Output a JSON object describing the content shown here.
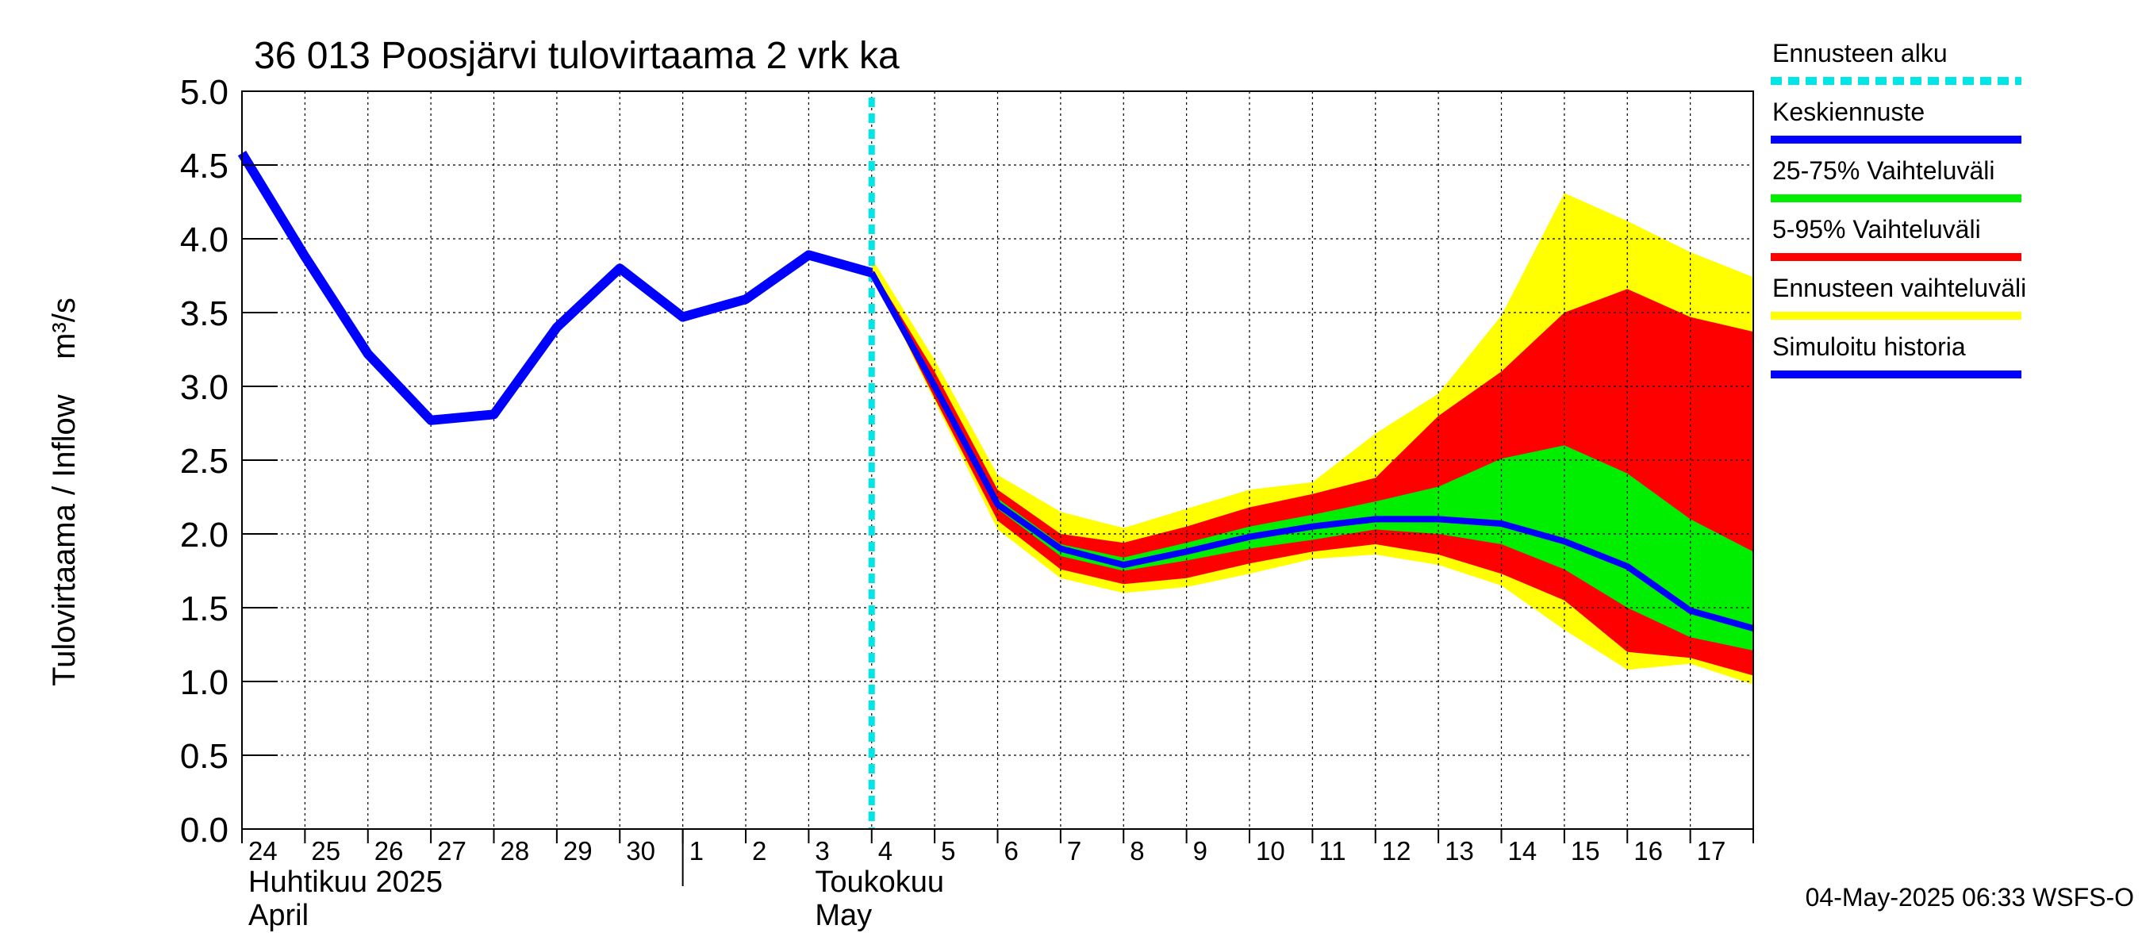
{
  "chart_data": {
    "type": "area",
    "title": "36 013 Poosjärvi tulovirtaama 2 vrk ka",
    "ylabel": "Tulovirtaama / Inflow    m³/s",
    "ylim": [
      0.0,
      5.0
    ],
    "y_ticks": [
      "0.0",
      "0.5",
      "1.0",
      "1.5",
      "2.0",
      "2.5",
      "3.0",
      "3.5",
      "4.0",
      "4.5",
      "5.0"
    ],
    "x_start": "2025-04-24",
    "x_end": "2025-05-18",
    "x_tick_labels": [
      "24",
      "25",
      "26",
      "27",
      "28",
      "29",
      "30",
      "1",
      "2",
      "3",
      "4",
      "5",
      "6",
      "7",
      "8",
      "9",
      "10",
      "11",
      "12",
      "13",
      "14",
      "15",
      "16",
      "17"
    ],
    "month_labels": [
      {
        "fi": "Huhtikuu  2025",
        "en": "April"
      },
      {
        "fi": "Toukokuu",
        "en": "May"
      }
    ],
    "forecast_start": "2025-05-04",
    "grid": true,
    "legend_position": "right",
    "legend": [
      {
        "label": "Ennusteen alku",
        "color": "#00e5e5",
        "style": "dashed"
      },
      {
        "label": "Keskiennuste",
        "color": "#0000ff",
        "style": "solid"
      },
      {
        "label": "25-75% Vaihteluväli",
        "color": "#00ee00",
        "style": "solid"
      },
      {
        "label": "5-95% Vaihteluväli",
        "color": "#ff0000",
        "style": "solid"
      },
      {
        "label": "Ennusteen vaihteluväli",
        "color": "#ffff00",
        "style": "solid"
      },
      {
        "label": "Simuloitu historia",
        "color": "#0000ff",
        "style": "solid"
      }
    ],
    "history": {
      "name": "Simuloitu historia",
      "color": "#0000ff",
      "x": [
        "2025-04-24",
        "2025-04-25",
        "2025-04-26",
        "2025-04-27",
        "2025-04-28",
        "2025-04-29",
        "2025-04-30",
        "2025-05-01",
        "2025-05-02",
        "2025-05-03",
        "2025-05-04"
      ],
      "y": [
        4.58,
        3.88,
        3.22,
        2.77,
        2.81,
        3.4,
        3.8,
        3.47,
        3.59,
        3.89,
        3.77
      ]
    },
    "forecast": {
      "x": [
        "2025-05-04",
        "2025-05-05",
        "2025-05-06",
        "2025-05-07",
        "2025-05-08",
        "2025-05-09",
        "2025-05-10",
        "2025-05-11",
        "2025-05-12",
        "2025-05-13",
        "2025-05-14",
        "2025-05-15",
        "2025-05-16",
        "2025-05-17",
        "2025-05-18"
      ],
      "median": [
        3.77,
        3.0,
        2.2,
        1.9,
        1.79,
        1.88,
        1.98,
        2.05,
        2.1,
        2.1,
        2.07,
        1.95,
        1.78,
        1.48,
        1.36
      ],
      "p25": [
        3.77,
        2.97,
        2.17,
        1.85,
        1.75,
        1.82,
        1.9,
        1.96,
        2.03,
        2.0,
        1.93,
        1.76,
        1.5,
        1.3,
        1.21
      ],
      "p75": [
        3.77,
        3.03,
        2.24,
        1.93,
        1.84,
        1.94,
        2.05,
        2.13,
        2.22,
        2.32,
        2.51,
        2.6,
        2.41,
        2.1,
        1.88
      ],
      "p5": [
        3.77,
        2.92,
        2.09,
        1.76,
        1.66,
        1.7,
        1.8,
        1.88,
        1.93,
        1.86,
        1.73,
        1.55,
        1.2,
        1.16,
        1.04
      ],
      "p95": [
        3.8,
        3.1,
        2.3,
        2.0,
        1.94,
        2.05,
        2.18,
        2.27,
        2.38,
        2.8,
        3.1,
        3.5,
        3.66,
        3.47,
        3.37
      ],
      "min": [
        3.77,
        2.9,
        2.03,
        1.7,
        1.6,
        1.64,
        1.73,
        1.83,
        1.86,
        1.79,
        1.65,
        1.35,
        1.08,
        1.12,
        0.98
      ],
      "max": [
        3.87,
        3.18,
        2.4,
        2.15,
        2.04,
        2.17,
        2.3,
        2.35,
        2.68,
        2.95,
        3.48,
        4.31,
        4.12,
        3.91,
        3.74
      ]
    }
  },
  "footer": {
    "timestamp": "04-May-2025 06:33 WSFS-O"
  }
}
